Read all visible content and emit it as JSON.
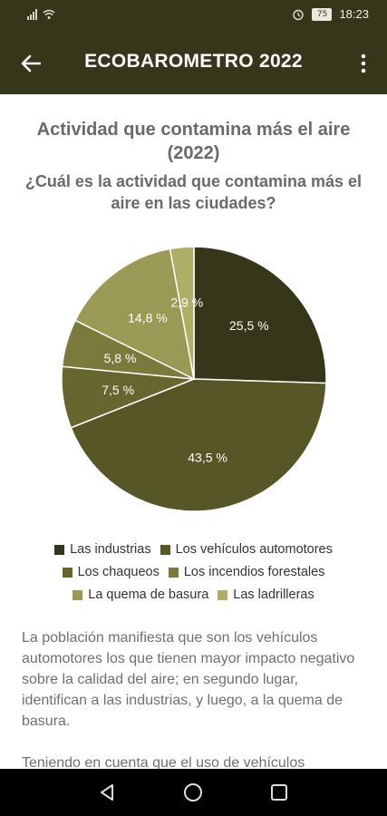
{
  "status_bar": {
    "time": "18:23",
    "battery": "75"
  },
  "app_bar": {
    "title": "ECOBAROMETRO 2022"
  },
  "chart_data": {
    "type": "pie",
    "title": "Actividad que contamina más el aire (2022)",
    "subtitle": "¿Cuál es la actividad que contamina más el aire en las ciudades?",
    "categories": [
      "Las industrias",
      "Los vehículos automotores",
      "Los chaqueos",
      "Los incendios forestales",
      "La quema de basura",
      "Las ladrilleras"
    ],
    "values": [
      25.5,
      43.5,
      7.5,
      5.8,
      14.8,
      2.9
    ],
    "labels": [
      "25,5 %",
      "43,5 %",
      "7,5 %",
      "5,8 %",
      "14,8 %",
      "2,9 %"
    ],
    "colors": [
      "#36361a",
      "#565626",
      "#66662e",
      "#7a7a3c",
      "#9a9a56",
      "#aeae66"
    ],
    "legend_position": "bottom"
  },
  "body": {
    "paragraph1": "La población manifiesta que son los vehículos automotores los que tienen mayor impacto negativo sobre la calidad del aire; en segundo lugar, identifican a las industrias, y luego, a la quema de basura.",
    "paragraph2": "Teniendo en cuenta que el uso de vehículos"
  },
  "icons": {
    "back": "arrow-back-icon",
    "more": "more-vert-icon",
    "nav_back": "triangle-back-icon",
    "nav_home": "circle-home-icon",
    "nav_recents": "square-recents-icon"
  }
}
